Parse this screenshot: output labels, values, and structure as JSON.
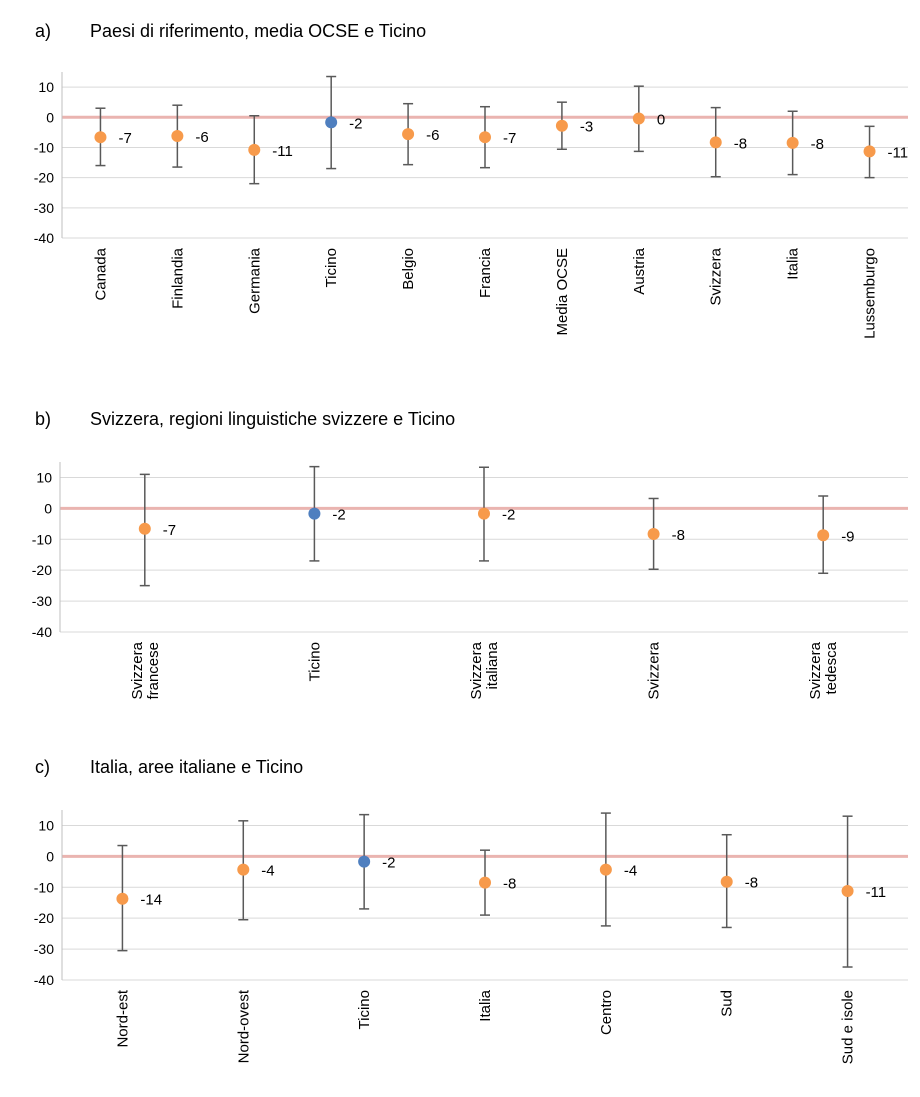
{
  "chart_data": [
    {
      "type": "errorbar",
      "panel": "a)",
      "title": "Paesi di riferimento, media OCSE e Ticino",
      "categories": [
        "Canada",
        "Finlandia",
        "Germania",
        "Ticino",
        "Belgio",
        "Francia",
        "Media OCSE",
        "Austria",
        "Svizzera",
        "Italia",
        "Lussemburgo"
      ],
      "values": [
        -6.6,
        -6.2,
        -10.8,
        -1.7,
        -5.6,
        -6.6,
        -2.8,
        -0.4,
        -8.3,
        -8.5,
        -11.3
      ],
      "value_labels": [
        "-7",
        "-6",
        "-11",
        "-2",
        "-6",
        "-7",
        "-3",
        "0",
        "-8",
        "-8",
        "-11"
      ],
      "lower": [
        -16,
        -16.5,
        -22,
        -17,
        -15.7,
        -16.7,
        -10.6,
        -11.3,
        -19.7,
        -19,
        -20
      ],
      "upper": [
        3,
        4,
        0.5,
        13.5,
        4.5,
        3.5,
        5,
        10.3,
        3.2,
        2,
        -3
      ],
      "point_colors": [
        "#f79a4b",
        "#f79a4b",
        "#f79a4b",
        "#4f7fbf",
        "#f79a4b",
        "#f79a4b",
        "#f79a4b",
        "#f79a4b",
        "#f79a4b",
        "#f79a4b",
        "#f79a4b"
      ],
      "ylim": [
        -40,
        15
      ],
      "yticks": [
        -40,
        -30,
        -20,
        -10,
        0,
        10
      ],
      "grid": true,
      "zero_line_color": "#eab4b0"
    },
    {
      "type": "errorbar",
      "panel": "b)",
      "title": "Svizzera, regioni linguistiche svizzere e Ticino",
      "categories": [
        "Svizzera\nfrancese",
        "Ticino",
        "Svizzera\nitaliana",
        "Svizzera",
        "Svizzera\ntedesca"
      ],
      "values": [
        -6.6,
        -1.7,
        -1.7,
        -8.3,
        -8.7
      ],
      "value_labels": [
        "-7",
        "-2",
        "-2",
        "-8",
        "-9"
      ],
      "lower": [
        -25,
        -17,
        -17,
        -19.7,
        -21
      ],
      "upper": [
        11,
        13.5,
        13.3,
        3.2,
        4
      ],
      "point_colors": [
        "#f79a4b",
        "#4f7fbf",
        "#f79a4b",
        "#f79a4b",
        "#f79a4b"
      ],
      "ylim": [
        -40,
        15
      ],
      "yticks": [
        -40,
        -30,
        -20,
        -10,
        0,
        10
      ],
      "grid": true,
      "zero_line_color": "#eab4b0"
    },
    {
      "type": "errorbar",
      "panel": "c)",
      "title": "Italia, aree italiane e Ticino",
      "categories": [
        "Nord-est",
        "Nord-ovest",
        "Ticino",
        "Italia",
        "Centro",
        "Sud",
        "Sud e isole"
      ],
      "values": [
        -13.7,
        -4.3,
        -1.7,
        -8.5,
        -4.3,
        -8.2,
        -11.2
      ],
      "value_labels": [
        "-14",
        "-4",
        "-2",
        "-8",
        "-4",
        "-8",
        "-11"
      ],
      "lower": [
        -30.5,
        -20.5,
        -17,
        -19,
        -22.5,
        -23,
        -35.8
      ],
      "upper": [
        3.5,
        11.5,
        13.5,
        2,
        14,
        7,
        13
      ],
      "point_colors": [
        "#f79a4b",
        "#f79a4b",
        "#4f7fbf",
        "#f79a4b",
        "#f79a4b",
        "#f79a4b",
        "#f79a4b"
      ],
      "ylim": [
        -40,
        15
      ],
      "yticks": [
        -40,
        -30,
        -20,
        -10,
        0,
        10
      ],
      "grid": true,
      "zero_line_color": "#eab4b0"
    }
  ]
}
